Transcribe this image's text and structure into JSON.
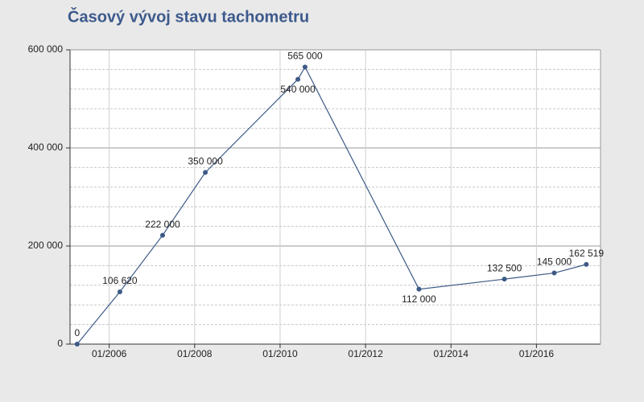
{
  "chart_data": {
    "type": "line",
    "title": "Časový vývoj stavu tachometru",
    "x": [
      "2005-04",
      "2006-04",
      "2007-04",
      "2008-04",
      "2010-06",
      "2010-08",
      "2013-04",
      "2015-04",
      "2016-06",
      "2017-03"
    ],
    "series": [
      {
        "color": "#3c5a86",
        "values": [
          0,
          106620,
          222000,
          350000,
          540000,
          565000,
          112000,
          132500,
          145000,
          162519
        ],
        "value_labels": [
          "0",
          "106 620",
          "222 000",
          "350 000",
          "540 000",
          "565 000",
          "112 000",
          "132 500",
          "145 000",
          "162 519"
        ]
      }
    ],
    "xlim": [
      "2005-02",
      "2017-07"
    ],
    "xticks": [
      {
        "value": "2006-01",
        "label": "01/2006"
      },
      {
        "value": "2008-01",
        "label": "01/2008"
      },
      {
        "value": "2010-01",
        "label": "01/2010"
      },
      {
        "value": "2012-01",
        "label": "01/2012"
      },
      {
        "value": "2014-01",
        "label": "01/2014"
      },
      {
        "value": "2016-01",
        "label": "01/2016"
      }
    ],
    "ylim": [
      0,
      600000
    ],
    "yticks": [
      {
        "value": 0,
        "label": "0"
      },
      {
        "value": 200000,
        "label": "200 000"
      },
      {
        "value": 400000,
        "label": "400 000"
      },
      {
        "value": 600000,
        "label": "600 000"
      }
    ],
    "grid": true
  }
}
